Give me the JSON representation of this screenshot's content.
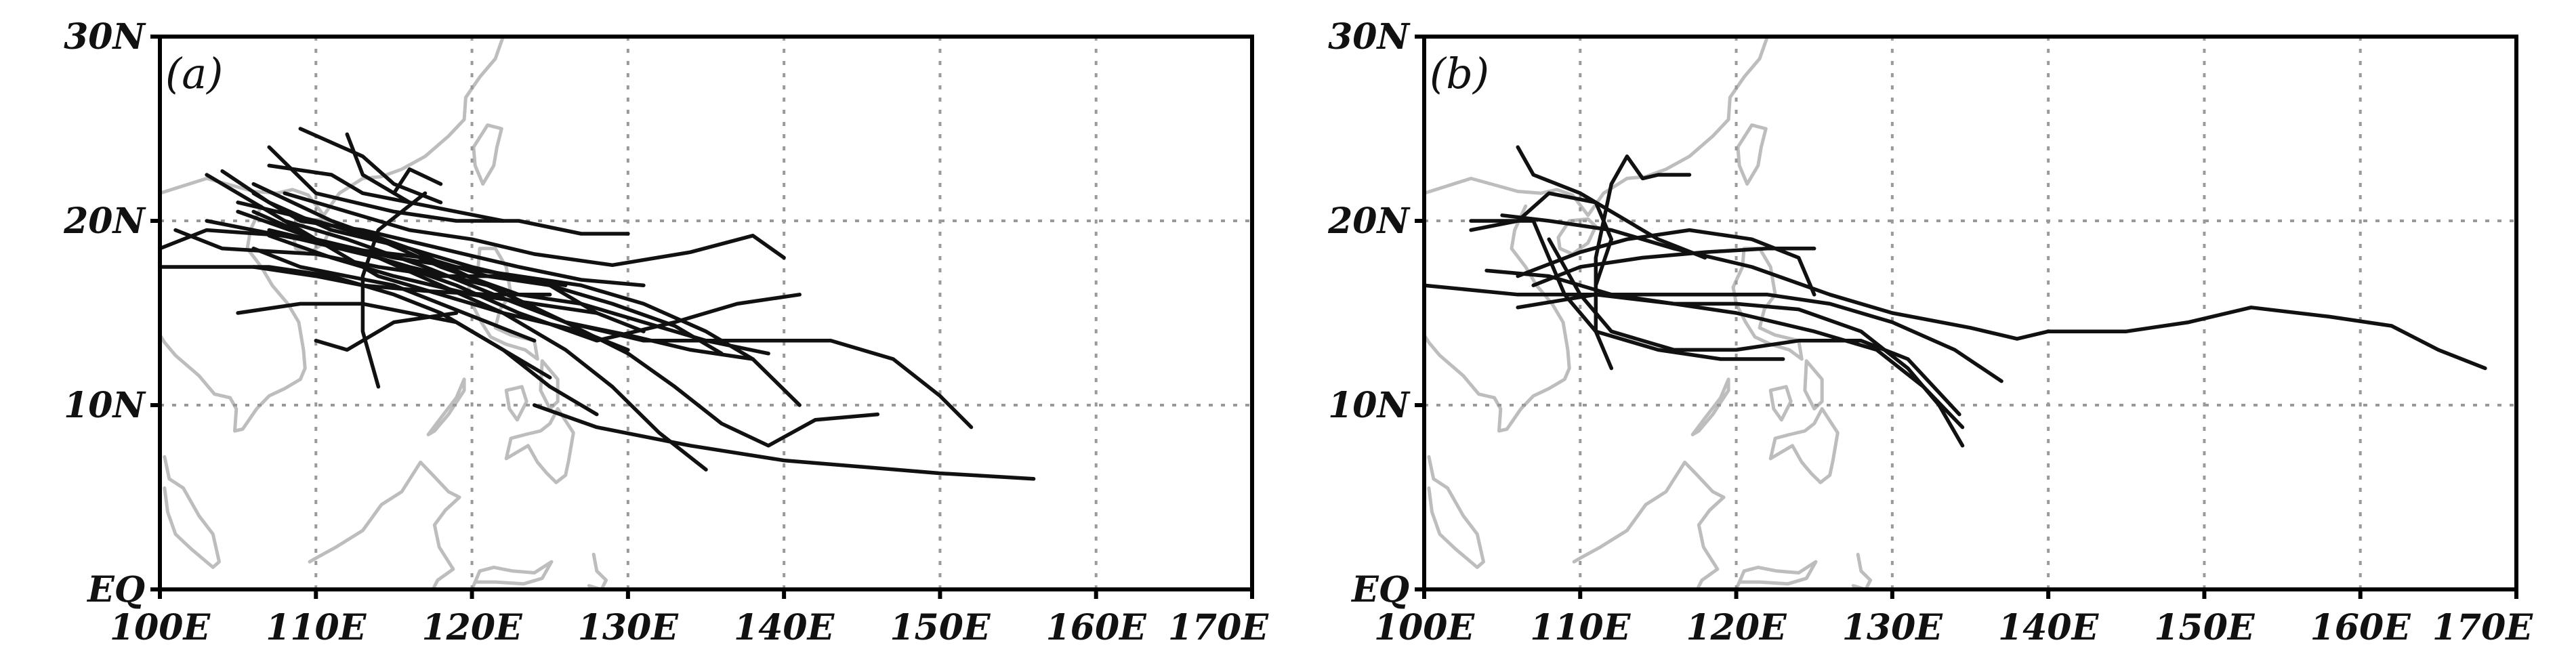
{
  "panels": [
    {
      "id": "a",
      "label": "(a)",
      "x_ticks": [
        "100E",
        "110E",
        "120E",
        "130E",
        "140E",
        "150E",
        "160E",
        "170E"
      ],
      "y_ticks": [
        "EQ",
        "10N",
        "20N",
        "30N"
      ],
      "lon_range": [
        100,
        170
      ],
      "lat_range": [
        0,
        30
      ],
      "tracks": [
        [
          [
            156,
            6
          ],
          [
            150,
            6.3
          ],
          [
            140,
            7
          ],
          [
            134,
            7.8
          ],
          [
            128,
            8.8
          ],
          [
            124,
            10
          ]
        ],
        [
          [
            152,
            8.8
          ],
          [
            150,
            10.5
          ],
          [
            147,
            12.5
          ],
          [
            143,
            13.5
          ],
          [
            136,
            13.5
          ],
          [
            131,
            13.5
          ],
          [
            126,
            14.5
          ],
          [
            121,
            16.5
          ],
          [
            116,
            18.5
          ],
          [
            111,
            20
          ],
          [
            106,
            22
          ]
        ],
        [
          [
            146,
            9.5
          ],
          [
            142,
            9.2
          ],
          [
            139,
            7.8
          ],
          [
            136,
            9
          ],
          [
            133,
            11
          ],
          [
            130,
            12.8
          ],
          [
            126,
            14.5
          ],
          [
            121,
            16.5
          ],
          [
            116,
            17.5
          ],
          [
            112,
            18.5
          ],
          [
            107,
            19.5
          ]
        ],
        [
          [
            141,
            10
          ],
          [
            138,
            12.5
          ],
          [
            135,
            14
          ],
          [
            131,
            15.5
          ],
          [
            127,
            16.5
          ],
          [
            123,
            17
          ],
          [
            119,
            17.5
          ],
          [
            115,
            18
          ],
          [
            110,
            19
          ],
          [
            105,
            20.5
          ]
        ],
        [
          [
            141,
            16
          ],
          [
            137,
            15.5
          ],
          [
            133,
            14.5
          ],
          [
            128,
            13.5
          ],
          [
            123,
            15
          ],
          [
            119,
            16.5
          ],
          [
            114,
            18
          ],
          [
            109,
            19
          ],
          [
            103,
            20
          ]
        ],
        [
          [
            140,
            18
          ],
          [
            138,
            19.2
          ],
          [
            134,
            18.3
          ],
          [
            129,
            17.6
          ],
          [
            124,
            18.2
          ],
          [
            120,
            19
          ],
          [
            116,
            19.5
          ],
          [
            112,
            20.5
          ],
          [
            108,
            21.5
          ]
        ],
        [
          [
            139,
            12.8
          ],
          [
            135,
            13.5
          ],
          [
            131,
            14.5
          ],
          [
            127,
            15.5
          ],
          [
            123,
            16
          ],
          [
            118,
            17.5
          ],
          [
            114,
            19
          ],
          [
            110,
            20
          ],
          [
            105,
            21
          ]
        ],
        [
          [
            138,
            12.5
          ],
          [
            134,
            13
          ],
          [
            130,
            13.8
          ],
          [
            126,
            14.5
          ],
          [
            122,
            15.8
          ],
          [
            117,
            17.5
          ],
          [
            112,
            19
          ],
          [
            108,
            20
          ],
          [
            103,
            22.5
          ]
        ],
        [
          [
            136,
            12.8
          ],
          [
            133,
            14.3
          ],
          [
            129,
            15.5
          ],
          [
            125,
            16.5
          ],
          [
            120,
            17.5
          ],
          [
            116,
            18.5
          ],
          [
            111,
            19.5
          ],
          [
            107,
            21
          ],
          [
            104,
            22.7
          ]
        ],
        [
          [
            135,
            6.5
          ],
          [
            132,
            8.5
          ],
          [
            129,
            11
          ],
          [
            126,
            13
          ],
          [
            122,
            15
          ],
          [
            118,
            16.5
          ],
          [
            114,
            18
          ],
          [
            110,
            19
          ],
          [
            106,
            20.5
          ]
        ],
        [
          [
            130,
            19.3
          ],
          [
            127,
            19.3
          ],
          [
            123,
            20
          ],
          [
            119,
            20
          ],
          [
            115,
            20.5
          ],
          [
            110,
            21.5
          ],
          [
            107,
            24
          ]
        ],
        [
          [
            131,
            16.5
          ],
          [
            127,
            16.8
          ],
          [
            123,
            17.5
          ],
          [
            118,
            18.5
          ],
          [
            113,
            19.5
          ],
          [
            109,
            20
          ],
          [
            106,
            21.5
          ]
        ],
        [
          [
            131,
            14
          ],
          [
            128,
            15
          ],
          [
            124,
            15.5
          ],
          [
            120,
            16
          ],
          [
            115,
            17
          ],
          [
            111,
            18
          ],
          [
            107,
            19.2
          ]
        ],
        [
          [
            130,
            13
          ],
          [
            127,
            14
          ],
          [
            122,
            15
          ],
          [
            118,
            16
          ],
          [
            114,
            17
          ],
          [
            111,
            18.5
          ],
          [
            108,
            20
          ]
        ],
        [
          [
            128,
            15
          ],
          [
            125,
            16.5
          ],
          [
            121,
            17
          ],
          [
            117,
            18
          ],
          [
            112,
            18.5
          ],
          [
            108,
            19.2
          ],
          [
            103,
            19.5
          ],
          [
            100,
            18.5
          ]
        ],
        [
          [
            128,
            9.5
          ],
          [
            125,
            11
          ],
          [
            122,
            13
          ],
          [
            118,
            15
          ],
          [
            115,
            16
          ],
          [
            111,
            17
          ],
          [
            107,
            17.5
          ],
          [
            103,
            17.5
          ],
          [
            100,
            17.5
          ]
        ],
        [
          [
            125,
            11.5
          ],
          [
            122,
            13
          ],
          [
            119,
            14.5
          ],
          [
            116,
            15
          ],
          [
            113,
            15.5
          ],
          [
            109,
            15.5
          ],
          [
            105,
            15
          ]
        ],
        [
          [
            126,
            16.5
          ],
          [
            122,
            17
          ],
          [
            118,
            17
          ],
          [
            114,
            17.5
          ],
          [
            110,
            18.2
          ],
          [
            104,
            18.5
          ],
          [
            101,
            19.5
          ]
        ],
        [
          [
            124,
            13.5
          ],
          [
            121,
            14.5
          ],
          [
            118,
            15.5
          ],
          [
            115,
            16.5
          ],
          [
            112,
            17
          ],
          [
            109,
            17.5
          ],
          [
            106,
            18.5
          ]
        ],
        [
          [
            122,
            20
          ],
          [
            119,
            20.5
          ],
          [
            116,
            21
          ],
          [
            113,
            21.5
          ],
          [
            111,
            22.5
          ],
          [
            107,
            23
          ]
        ],
        [
          [
            117,
            21.5
          ],
          [
            114,
            19.5
          ],
          [
            113,
            17
          ],
          [
            113,
            14
          ],
          [
            114,
            11
          ]
        ],
        [
          [
            116,
            21
          ],
          [
            113,
            22.5
          ],
          [
            112,
            24.7
          ]
        ],
        [
          [
            119,
            15
          ],
          [
            115,
            14.5
          ],
          [
            112,
            13
          ],
          [
            110,
            13.5
          ]
        ],
        [
          [
            118,
            21
          ],
          [
            115,
            22
          ],
          [
            113,
            23.5
          ],
          [
            109,
            25
          ]
        ],
        [
          [
            118,
            22
          ],
          [
            116,
            22.8
          ],
          [
            115,
            21.5
          ]
        ],
        [
          [
            125,
            16
          ],
          [
            121,
            16
          ],
          [
            117,
            16.2
          ],
          [
            113,
            16.5
          ],
          [
            110,
            17
          ],
          [
            106,
            17.5
          ]
        ]
      ]
    },
    {
      "id": "b",
      "label": "(b)",
      "x_ticks": [
        "100E",
        "110E",
        "120E",
        "130E",
        "140E",
        "150E",
        "160E",
        "170E"
      ],
      "y_ticks": [
        "EQ",
        "10N",
        "20N",
        "30N"
      ],
      "lon_range": [
        100,
        170
      ],
      "lat_range": [
        0,
        30
      ],
      "tracks": [
        [
          [
            168,
            12
          ],
          [
            165,
            13
          ],
          [
            162,
            14.3
          ],
          [
            158,
            14.8
          ],
          [
            153,
            15.3
          ],
          [
            149,
            14.5
          ],
          [
            145,
            14
          ],
          [
            140,
            14
          ],
          [
            138,
            13.6
          ],
          [
            135,
            14.2
          ],
          [
            130,
            15
          ],
          [
            126,
            16
          ],
          [
            121,
            17.5
          ],
          [
            116,
            18.5
          ],
          [
            112,
            19.5
          ],
          [
            108,
            20
          ],
          [
            105,
            20.3
          ]
        ],
        [
          [
            137,
            11.3
          ],
          [
            134,
            13
          ],
          [
            130,
            14.5
          ],
          [
            126,
            15.5
          ],
          [
            122,
            16
          ],
          [
            117,
            16
          ],
          [
            112,
            16
          ],
          [
            106,
            16
          ],
          [
            100,
            16.5
          ]
        ],
        [
          [
            134.5,
            7.8
          ],
          [
            133,
            10
          ],
          [
            131,
            12
          ],
          [
            128,
            14
          ],
          [
            124,
            15.2
          ],
          [
            120,
            15.5
          ],
          [
            116,
            15.5
          ],
          [
            111,
            16
          ],
          [
            106,
            15.3
          ]
        ],
        [
          [
            134.5,
            8.8
          ],
          [
            132,
            11
          ],
          [
            129,
            13
          ],
          [
            125,
            14
          ],
          [
            120,
            15
          ],
          [
            116,
            15.5
          ],
          [
            112,
            16
          ],
          [
            108,
            17
          ],
          [
            104,
            17.3
          ]
        ],
        [
          [
            134.3,
            9.5
          ],
          [
            131,
            12.5
          ],
          [
            128,
            13.5
          ],
          [
            124,
            13.5
          ],
          [
            120,
            13
          ],
          [
            116,
            13
          ],
          [
            112,
            14
          ],
          [
            110,
            16
          ],
          [
            108,
            19
          ]
        ],
        [
          [
            125,
            18.5
          ],
          [
            122,
            18.5
          ],
          [
            118,
            18.3
          ],
          [
            114,
            18
          ],
          [
            110,
            17.5
          ],
          [
            107,
            16.5
          ]
        ],
        [
          [
            125,
            16
          ],
          [
            124,
            18
          ],
          [
            121,
            19
          ],
          [
            117,
            19.5
          ],
          [
            113,
            19
          ],
          [
            110,
            18.3
          ],
          [
            106,
            17
          ]
        ],
        [
          [
            123,
            12.5
          ],
          [
            119,
            12.5
          ],
          [
            115,
            13
          ],
          [
            111,
            14
          ],
          [
            109,
            16
          ],
          [
            108,
            18
          ],
          [
            107,
            20
          ],
          [
            103,
            20
          ]
        ],
        [
          [
            117,
            22.5
          ],
          [
            115,
            22.5
          ],
          [
            114,
            22.3
          ],
          [
            113,
            23.5
          ],
          [
            112,
            22
          ],
          [
            111,
            18
          ],
          [
            111,
            14
          ],
          [
            112,
            12
          ]
        ],
        [
          [
            118,
            18
          ],
          [
            115,
            19
          ],
          [
            112,
            20.5
          ],
          [
            110,
            21.5
          ],
          [
            107,
            22.5
          ],
          [
            106,
            24
          ]
        ],
        [
          [
            111,
            16.5
          ],
          [
            112,
            19
          ],
          [
            111,
            21
          ],
          [
            108,
            21.5
          ],
          [
            106,
            20
          ],
          [
            103,
            19.5
          ]
        ]
      ]
    }
  ]
}
